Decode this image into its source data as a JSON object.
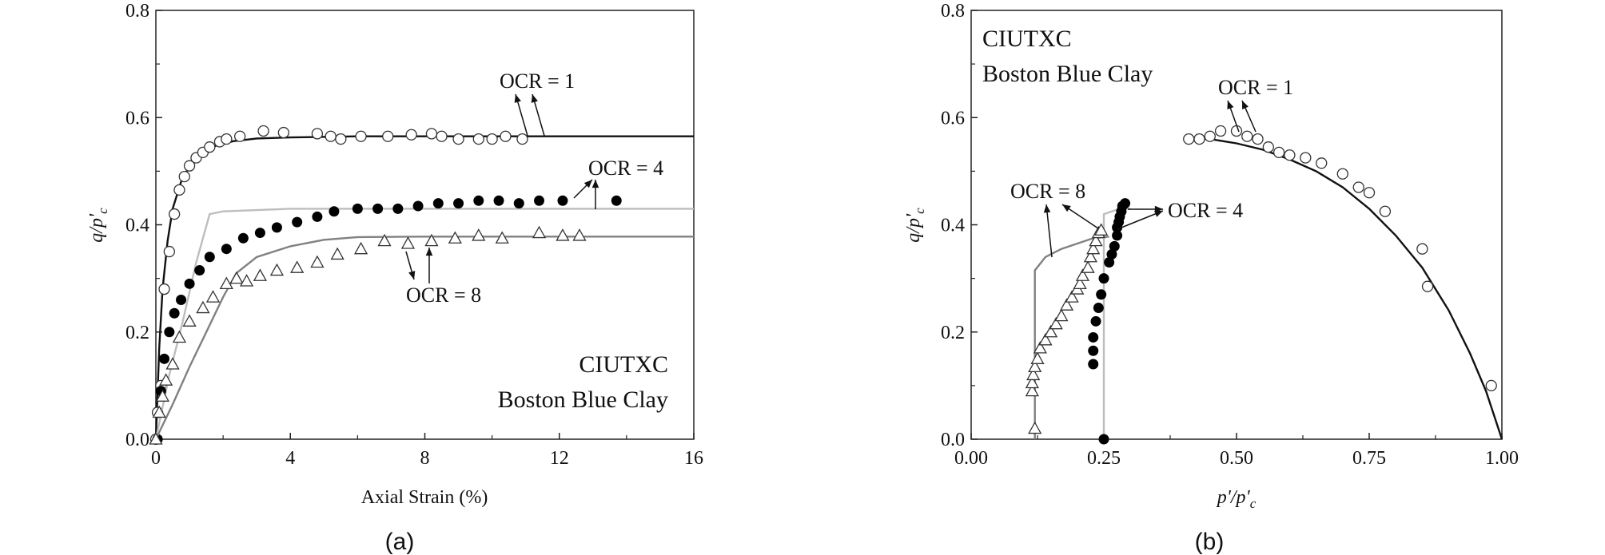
{
  "chart_data": [
    {
      "type": "line",
      "caption": "(a)",
      "xlabel": "Axial Strain (%)",
      "ylabel": "q/p'c",
      "xlim": [
        0,
        16
      ],
      "ylim": [
        0,
        0.8
      ],
      "xticks": [
        0,
        4,
        8,
        12,
        16
      ],
      "yticks": [
        0.0,
        0.2,
        0.4,
        0.6,
        0.8
      ],
      "xtick_labels": [
        "0",
        "4",
        "8",
        "12",
        "16"
      ],
      "ytick_labels": [
        "0.0",
        "0.2",
        "0.4",
        "0.6",
        "0.8"
      ],
      "box_text": [
        "CIUTXC",
        "Boston Blue Clay"
      ],
      "annotations": [
        "OCR = 1",
        "OCR = 4",
        "OCR = 8"
      ],
      "series": [
        {
          "kind": "simulation",
          "color": "#111111",
          "x": [
            0,
            0.1,
            0.2,
            0.35,
            0.5,
            0.75,
            1.0,
            1.4,
            1.8,
            2.3,
            3.0,
            4.0,
            5.0,
            6.0,
            8.0,
            12.0,
            16.0
          ],
          "y": [
            0.0,
            0.17,
            0.28,
            0.37,
            0.43,
            0.48,
            0.51,
            0.535,
            0.548,
            0.556,
            0.561,
            0.563,
            0.564,
            0.565,
            0.565,
            0.565,
            0.565
          ]
        },
        {
          "kind": "measured",
          "marker": "open-circle",
          "x": [
            0.0,
            0.05,
            0.15,
            0.25,
            0.4,
            0.55,
            0.7,
            0.85,
            1.0,
            1.2,
            1.4,
            1.6,
            1.9,
            2.1,
            2.5,
            3.2,
            3.8,
            4.8,
            5.2,
            5.5,
            6.1,
            6.9,
            7.6,
            8.2,
            8.5,
            9.0,
            9.6,
            10.0,
            10.4,
            10.9
          ],
          "y": [
            0.0,
            0.05,
            0.1,
            0.28,
            0.35,
            0.42,
            0.465,
            0.49,
            0.51,
            0.525,
            0.535,
            0.545,
            0.555,
            0.56,
            0.565,
            0.575,
            0.572,
            0.57,
            0.565,
            0.56,
            0.565,
            0.565,
            0.568,
            0.57,
            0.565,
            0.56,
            0.56,
            0.56,
            0.565,
            0.56
          ]
        },
        {
          "kind": "simulation",
          "color": "#bdbdbd",
          "x": [
            0,
            0.4,
            0.8,
            1.2,
            1.6,
            2.0,
            4.0,
            8.0,
            12.0,
            16.0
          ],
          "y": [
            0.0,
            0.12,
            0.22,
            0.33,
            0.42,
            0.425,
            0.43,
            0.43,
            0.43,
            0.43
          ]
        },
        {
          "kind": "measured",
          "marker": "filled-circle",
          "x": [
            0.05,
            0.15,
            0.25,
            0.4,
            0.55,
            0.75,
            1.0,
            1.3,
            1.6,
            2.1,
            2.6,
            3.1,
            3.6,
            4.2,
            4.8,
            5.3,
            6.0,
            6.6,
            7.2,
            7.8,
            8.4,
            9.0,
            9.6,
            10.2,
            10.8,
            11.4,
            12.1,
            13.7
          ],
          "y": [
            0.0,
            0.09,
            0.15,
            0.2,
            0.235,
            0.26,
            0.29,
            0.315,
            0.34,
            0.355,
            0.375,
            0.385,
            0.395,
            0.405,
            0.415,
            0.425,
            0.43,
            0.43,
            0.43,
            0.435,
            0.44,
            0.44,
            0.445,
            0.445,
            0.44,
            0.445,
            0.445,
            0.445
          ]
        },
        {
          "kind": "simulation",
          "color": "#808080",
          "x": [
            0,
            0.5,
            1.0,
            1.5,
            2.0,
            2.4,
            3.0,
            4.0,
            5.0,
            6.0,
            8.0,
            12.0,
            16.0
          ],
          "y": [
            0.0,
            0.065,
            0.135,
            0.2,
            0.265,
            0.31,
            0.34,
            0.36,
            0.372,
            0.377,
            0.378,
            0.378,
            0.378
          ]
        },
        {
          "kind": "measured",
          "marker": "open-triangle",
          "x": [
            0.0,
            0.1,
            0.2,
            0.3,
            0.5,
            0.7,
            1.0,
            1.4,
            1.7,
            2.1,
            2.4,
            2.7,
            3.1,
            3.6,
            4.2,
            4.8,
            5.4,
            6.1,
            6.8,
            7.5,
            8.2,
            8.9,
            9.6,
            10.3,
            11.4,
            12.1,
            12.6
          ],
          "y": [
            0.0,
            0.05,
            0.08,
            0.11,
            0.14,
            0.19,
            0.22,
            0.245,
            0.265,
            0.29,
            0.3,
            0.295,
            0.305,
            0.315,
            0.32,
            0.33,
            0.345,
            0.355,
            0.37,
            0.365,
            0.37,
            0.375,
            0.38,
            0.375,
            0.385,
            0.38,
            0.38
          ]
        }
      ]
    },
    {
      "type": "line",
      "caption": "(b)",
      "xlabel": "p'/p'c",
      "ylabel": "q/p'c",
      "xlim": [
        0,
        1.0
      ],
      "ylim": [
        0,
        0.8
      ],
      "xticks": [
        0,
        0.25,
        0.5,
        0.75,
        1.0
      ],
      "yticks": [
        0.0,
        0.2,
        0.4,
        0.6,
        0.8
      ],
      "xtick_labels": [
        "0.00",
        "0.25",
        "0.50",
        "0.75",
        "1.00"
      ],
      "ytick_labels": [
        "0.0",
        "0.2",
        "0.4",
        "0.6",
        "0.8"
      ],
      "box_text": [
        "CIUTXC",
        "Boston Blue Clay"
      ],
      "annotations": [
        "OCR = 1",
        "OCR = 8",
        "OCR = 4"
      ],
      "series": [
        {
          "kind": "simulation",
          "color": "#111111",
          "x": [
            0.42,
            0.45,
            0.5,
            0.55,
            0.6,
            0.65,
            0.7,
            0.75,
            0.8,
            0.85,
            0.9,
            0.94,
            0.97,
            0.99,
            1.0
          ],
          "y": [
            0.56,
            0.56,
            0.552,
            0.54,
            0.522,
            0.5,
            0.47,
            0.43,
            0.38,
            0.32,
            0.24,
            0.16,
            0.09,
            0.03,
            0.0
          ]
        },
        {
          "kind": "measured",
          "marker": "open-circle",
          "x": [
            0.41,
            0.43,
            0.45,
            0.47,
            0.5,
            0.52,
            0.54,
            0.56,
            0.58,
            0.6,
            0.63,
            0.66,
            0.7,
            0.73,
            0.75,
            0.78,
            0.85,
            0.86,
            0.98
          ],
          "y": [
            0.56,
            0.56,
            0.565,
            0.575,
            0.575,
            0.565,
            0.56,
            0.545,
            0.535,
            0.53,
            0.525,
            0.515,
            0.495,
            0.47,
            0.46,
            0.425,
            0.355,
            0.285,
            0.1
          ]
        },
        {
          "kind": "simulation",
          "color": "#bdbdbd",
          "x": [
            0.25,
            0.25,
            0.28,
            0.3
          ],
          "y": [
            0.0,
            0.42,
            0.43,
            0.43
          ]
        },
        {
          "kind": "measured",
          "marker": "filled-circle",
          "x": [
            0.25,
            0.23,
            0.23,
            0.23,
            0.235,
            0.24,
            0.245,
            0.25,
            0.26,
            0.265,
            0.27,
            0.275,
            0.275,
            0.278,
            0.28,
            0.283,
            0.285,
            0.29
          ],
          "y": [
            0.0,
            0.14,
            0.165,
            0.19,
            0.22,
            0.245,
            0.27,
            0.3,
            0.33,
            0.345,
            0.36,
            0.38,
            0.395,
            0.405,
            0.415,
            0.425,
            0.435,
            0.44
          ]
        },
        {
          "kind": "simulation",
          "color": "#808080",
          "x": [
            0.12,
            0.12,
            0.14,
            0.17,
            0.2,
            0.23,
            0.26
          ],
          "y": [
            0.0,
            0.315,
            0.34,
            0.355,
            0.365,
            0.375,
            0.378
          ]
        },
        {
          "kind": "measured",
          "marker": "open-triangle",
          "x": [
            0.12,
            0.115,
            0.115,
            0.117,
            0.12,
            0.125,
            0.13,
            0.14,
            0.15,
            0.16,
            0.17,
            0.18,
            0.19,
            0.2,
            0.205,
            0.21,
            0.22,
            0.225,
            0.23,
            0.235,
            0.24,
            0.245
          ],
          "y": [
            0.02,
            0.09,
            0.105,
            0.12,
            0.135,
            0.15,
            0.17,
            0.185,
            0.2,
            0.215,
            0.23,
            0.25,
            0.265,
            0.28,
            0.29,
            0.305,
            0.32,
            0.34,
            0.355,
            0.37,
            0.385,
            0.39
          ]
        }
      ]
    }
  ]
}
